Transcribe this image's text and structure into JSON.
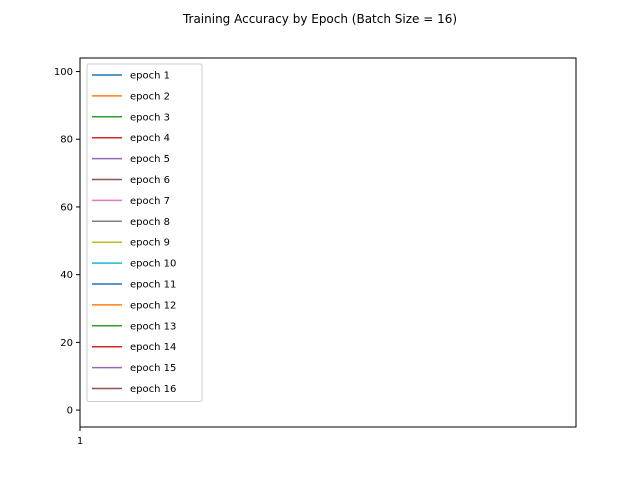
{
  "chart_data": {
    "type": "line",
    "title": "Training Accuracy by Epoch (Batch Size = 16)",
    "xlabel": "",
    "ylabel": "",
    "x_ticks": [
      1
    ],
    "y_ticks": [
      0,
      20,
      40,
      60,
      80,
      100
    ],
    "ylim": [
      -5,
      104
    ],
    "grid": false,
    "legend_position": "upper-left",
    "series": [
      {
        "name": "epoch 1",
        "color": "#1f77b4",
        "values": []
      },
      {
        "name": "epoch 2",
        "color": "#ff7f0e",
        "values": []
      },
      {
        "name": "epoch 3",
        "color": "#2ca02c",
        "values": []
      },
      {
        "name": "epoch 4",
        "color": "#d62728",
        "values": []
      },
      {
        "name": "epoch 5",
        "color": "#9467bd",
        "values": []
      },
      {
        "name": "epoch 6",
        "color": "#8c564b",
        "values": []
      },
      {
        "name": "epoch 7",
        "color": "#e377c2",
        "values": []
      },
      {
        "name": "epoch 8",
        "color": "#7f7f7f",
        "values": []
      },
      {
        "name": "epoch 9",
        "color": "#bcbd22",
        "values": []
      },
      {
        "name": "epoch 10",
        "color": "#17becf",
        "values": []
      },
      {
        "name": "epoch 11",
        "color": "#1f77b4",
        "values": []
      },
      {
        "name": "epoch 12",
        "color": "#ff7f0e",
        "values": []
      },
      {
        "name": "epoch 13",
        "color": "#2ca02c",
        "values": []
      },
      {
        "name": "epoch 14",
        "color": "#d62728",
        "values": []
      },
      {
        "name": "epoch 15",
        "color": "#9467bd",
        "values": []
      },
      {
        "name": "epoch 16",
        "color": "#8c564b",
        "values": []
      }
    ]
  }
}
